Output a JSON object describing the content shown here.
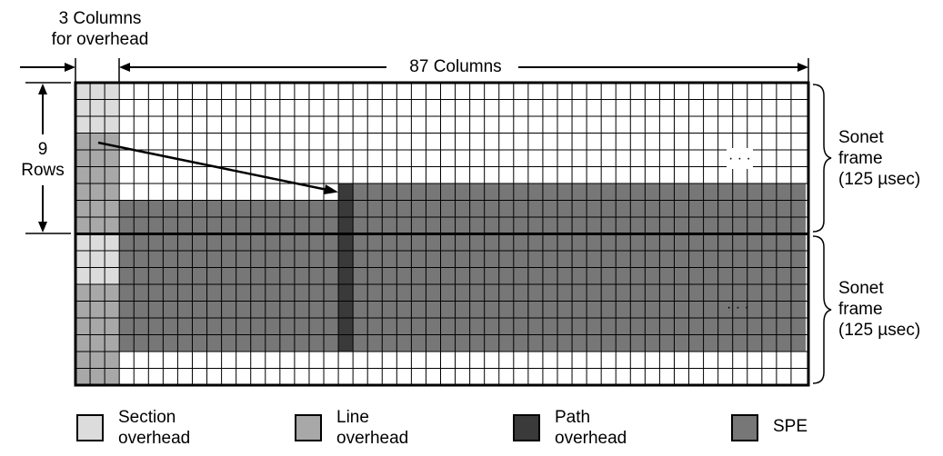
{
  "labels": {
    "overhead_columns": [
      "3 Columns",
      "for overhead"
    ],
    "columns": "87 Columns",
    "rows": [
      "9",
      "Rows"
    ],
    "frame_top": [
      "Sonet",
      "frame",
      "(125 µsec)"
    ],
    "frame_bottom": [
      "Sonet",
      "frame",
      "(125 µsec)"
    ],
    "ellipsis": "· · ·"
  },
  "legend": [
    {
      "line1": "Section",
      "line2": "overhead",
      "color": "#dcdcdc"
    },
    {
      "line1": "Line",
      "line2": "overhead",
      "color": "#a8a8a8"
    },
    {
      "line1": "Path",
      "line2": "overhead",
      "color": "#3a3a3a"
    },
    {
      "line1": "SPE",
      "line2": "",
      "color": "#777777"
    }
  ],
  "colors": {
    "section": "#dcdcdc",
    "line": "#a8a8a8",
    "path": "#3a3a3a",
    "spe": "#777777",
    "empty": "#ffffff",
    "grid": "#000000"
  }
}
